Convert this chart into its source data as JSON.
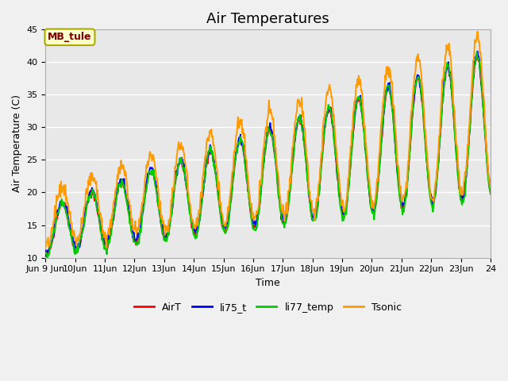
{
  "title": "Air Temperatures",
  "xlabel": "Time",
  "ylabel": "Air Temperature (C)",
  "ylim": [
    10,
    45
  ],
  "xlim": [
    0,
    15
  ],
  "x_tick_positions": [
    0,
    1,
    2,
    3,
    4,
    5,
    6,
    7,
    8,
    9,
    10,
    11,
    12,
    13,
    14,
    15
  ],
  "x_tick_labels": [
    "Jun 9 Jun",
    "10Jun",
    "11Jun",
    "12Jun",
    "13Jun",
    "14Jun",
    "15Jun",
    "16Jun",
    "17Jun",
    "18Jun",
    "19Jun",
    "20Jun",
    "21Jun",
    "22Jun",
    "23Jun",
    "24"
  ],
  "annotation_text": "MB_tule",
  "annotation_box_color": "#ffffcc",
  "annotation_text_color": "#800000",
  "annotation_border_color": "#aaaa00",
  "line_colors": {
    "AirT": "#ff0000",
    "li75_t": "#0000ff",
    "li77_temp": "#00cc00",
    "Tsonic": "#ff9900"
  },
  "fig_bg_color": "#f0f0f0",
  "plot_bg_color": "#e8e8e8",
  "grid_color": "#ffffff",
  "title_fontsize": 13,
  "axis_label_fontsize": 9,
  "tick_fontsize": 8,
  "legend_fontsize": 9,
  "line_width": 1.4,
  "n_days": 15,
  "pts_per_day": 48,
  "seed": 42
}
